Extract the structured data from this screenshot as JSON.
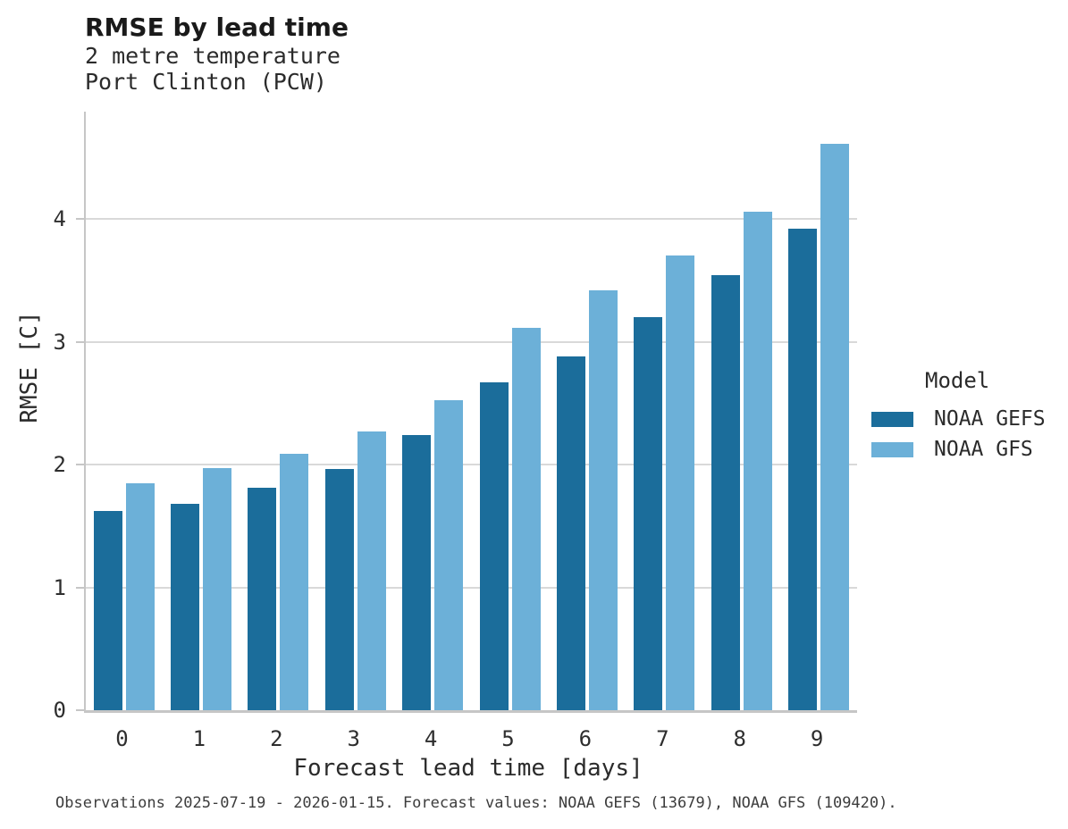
{
  "header": {
    "title": "RMSE by lead time",
    "subtitle1": "2 metre temperature",
    "subtitle2": "Port Clinton (PCW)"
  },
  "chart_data": {
    "type": "bar",
    "title": "RMSE by lead time",
    "subtitle": [
      "2 metre temperature",
      "Port Clinton (PCW)"
    ],
    "categories": [
      "0",
      "1",
      "2",
      "3",
      "4",
      "5",
      "6",
      "7",
      "8",
      "9"
    ],
    "series": [
      {
        "name": "NOAA GEFS",
        "color": "#1b6d9b",
        "values": [
          1.62,
          1.68,
          1.81,
          1.96,
          2.24,
          2.67,
          2.88,
          3.2,
          3.54,
          3.92
        ]
      },
      {
        "name": "NOAA GFS",
        "color": "#6cb0d8",
        "values": [
          1.85,
          1.97,
          2.09,
          2.27,
          2.52,
          3.11,
          3.42,
          3.7,
          4.06,
          4.61
        ]
      }
    ],
    "xlabel": "Forecast lead time [days]",
    "ylabel": "RMSE [C]",
    "ylim": [
      0,
      4.85
    ],
    "yticks": [
      0,
      1,
      2,
      3,
      4
    ],
    "grid": true,
    "legend_position": "right"
  },
  "legend": {
    "title": "Model"
  },
  "footer": {
    "text": "Observations 2025-07-19 - 2026-01-15. Forecast values: NOAA GEFS (13679), NOAA GFS (109420)."
  },
  "colors": {
    "gridline": "#d9d9d9",
    "axis": "#c6c6c6",
    "title_text": "#1a1a1a",
    "body_text": "#2b2b2b",
    "footer_text": "#3d3d3d"
  }
}
